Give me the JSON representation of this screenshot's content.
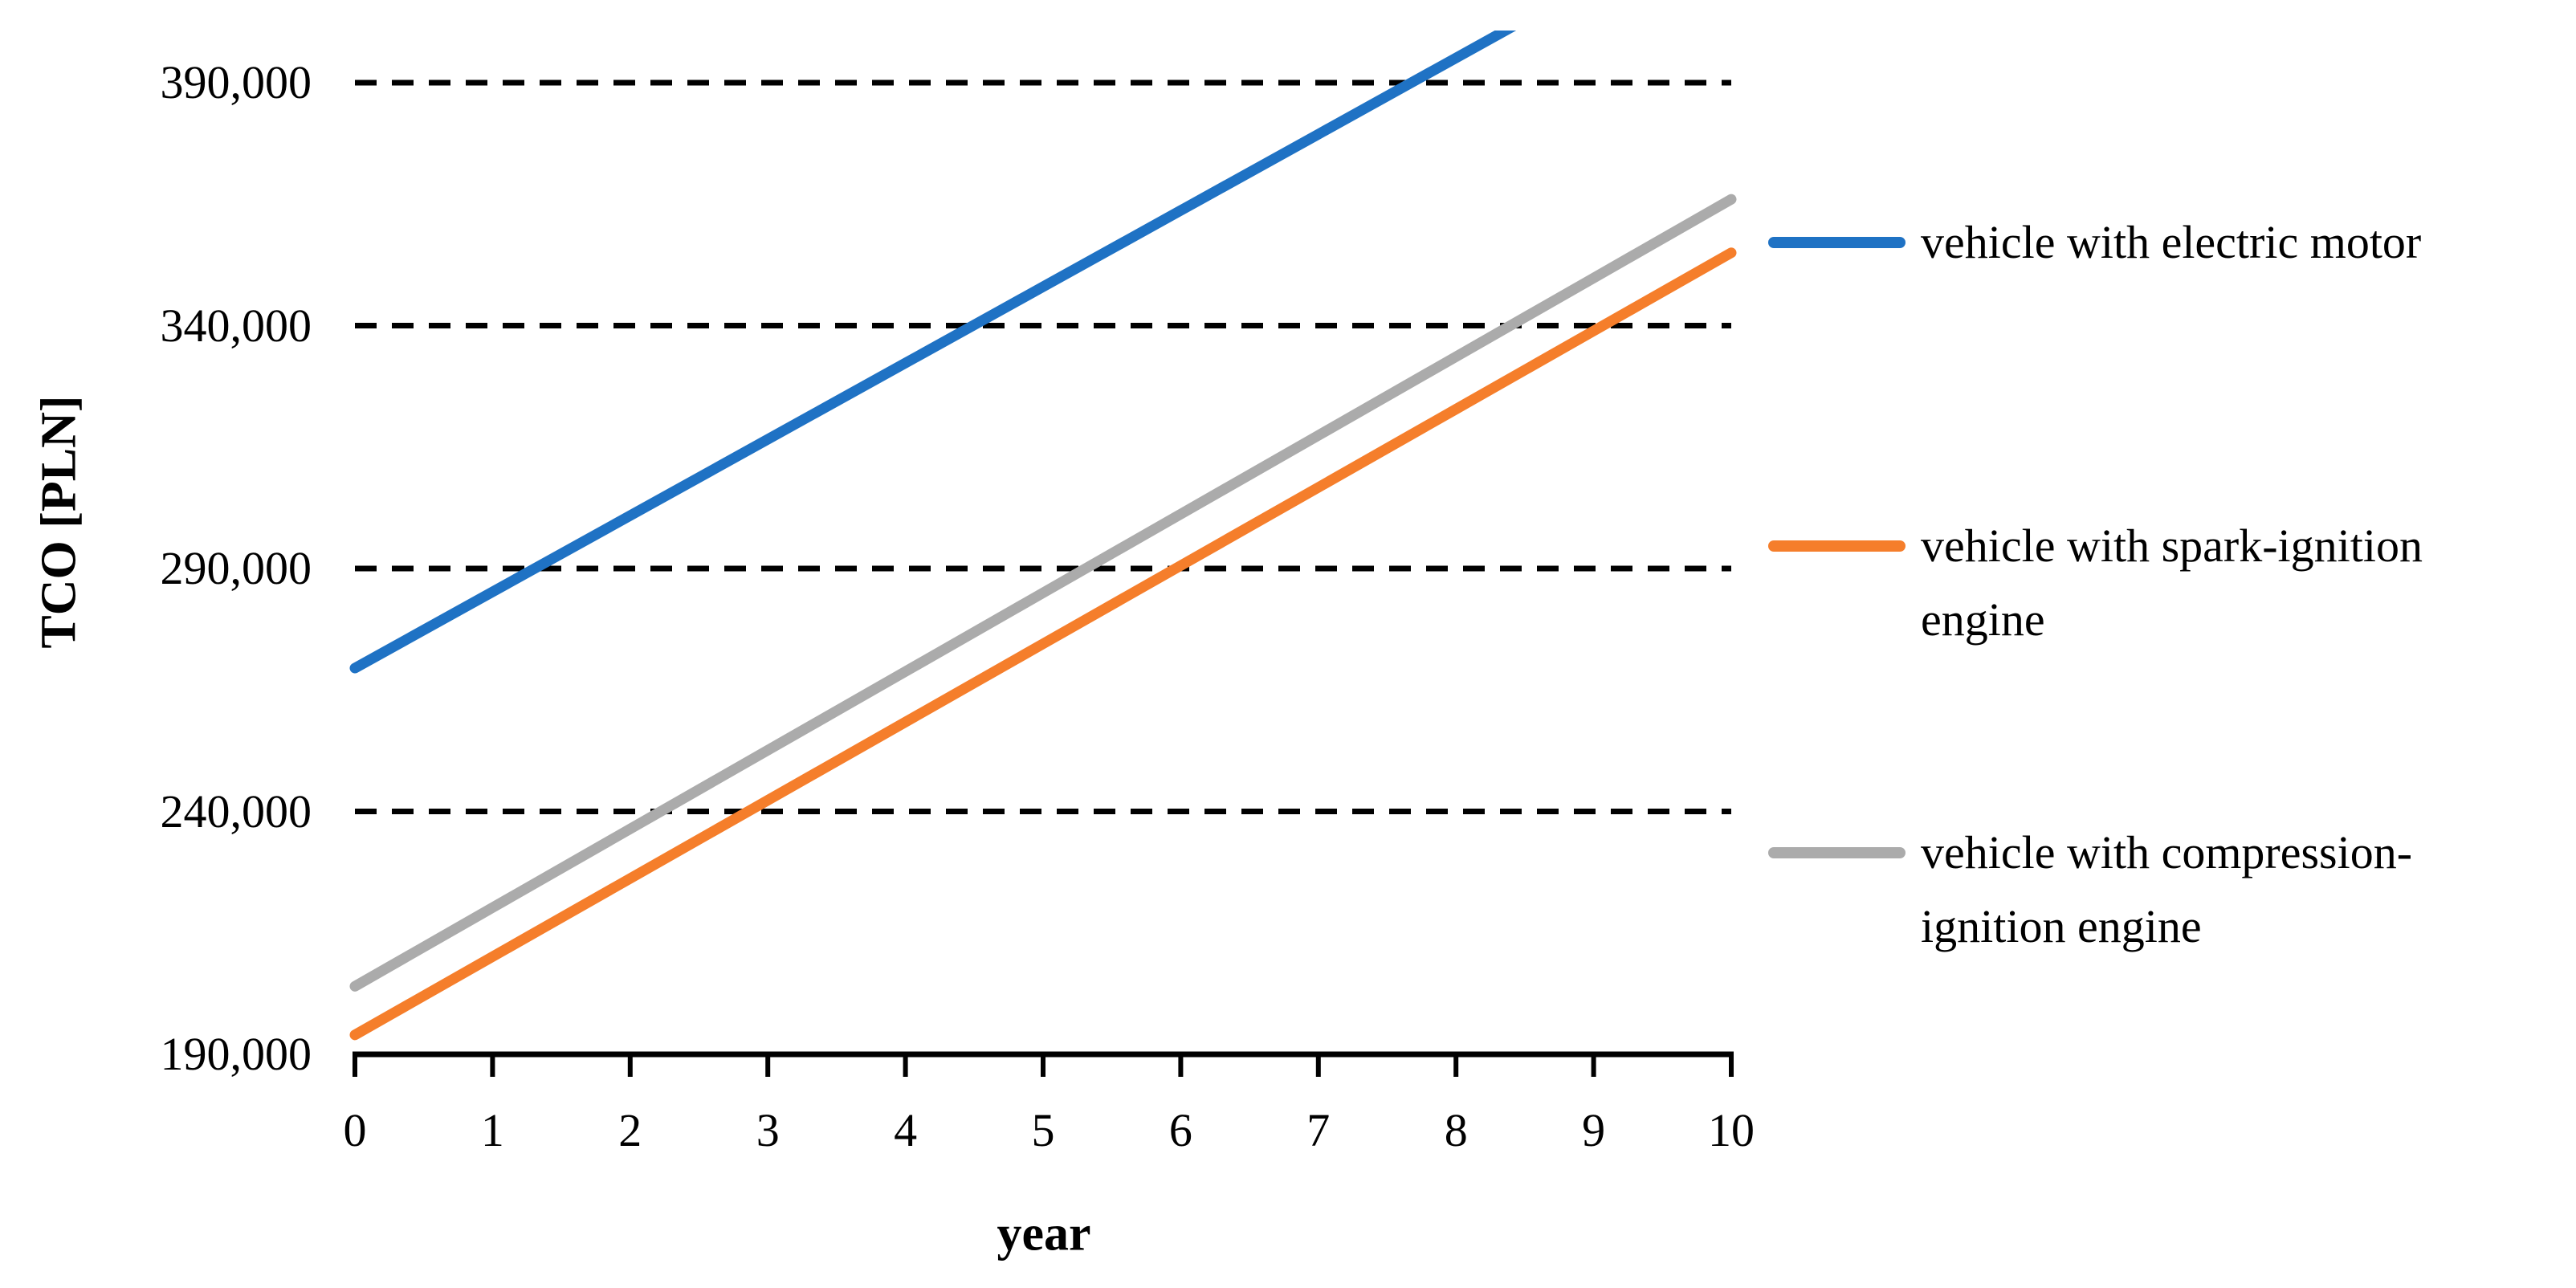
{
  "chart_data": {
    "type": "line",
    "title": "",
    "xlabel": "year",
    "ylabel": "TCO [PLN]",
    "x": [
      0,
      1,
      2,
      3,
      4,
      5,
      6,
      7,
      8,
      9,
      10
    ],
    "xlim": [
      0,
      10
    ],
    "ylim": [
      190000,
      404000
    ],
    "y_major_unit": 50000,
    "grid": "horizontal-dashed-only",
    "gridline_values": [
      240000,
      290000,
      340000,
      390000
    ],
    "y_tick_values": [
      190000,
      240000,
      290000,
      340000,
      390000
    ],
    "y_tick_labels": [
      "190,000",
      "240,000",
      "290,000",
      "340,000",
      "390,000"
    ],
    "x_tick_values": [
      0,
      1,
      2,
      3,
      4,
      5,
      6,
      7,
      8,
      9,
      10
    ],
    "x_tick_labels": [
      "0",
      "1",
      "2",
      "3",
      "4",
      "5",
      "6",
      "7",
      "8",
      "9",
      "10"
    ],
    "legend_position": "right",
    "axis_color": "#000000",
    "series": [
      {
        "key": "electric-motor",
        "name": "vehicle with electric motor",
        "legend_lines": [
          "vehicle with electric motor"
        ],
        "color": "#1F72C4",
        "values": [
          269500,
          285200,
          300900,
          316600,
          332300,
          348000,
          363700,
          379400,
          395100,
          410800,
          426500
        ],
        "note": "clipped at top of plot area above ~400,000"
      },
      {
        "key": "spark-ignition",
        "name": "vehicle with spark-ignition engine",
        "legend_lines": [
          "vehicle with spark-ignition",
          "engine"
        ],
        "color": "#F57E2B",
        "values": [
          194000,
          210100,
          226200,
          242300,
          258400,
          274500,
          290600,
          306700,
          322800,
          338900,
          355000
        ]
      },
      {
        "key": "compression-ignition",
        "name": "vehicle with compression-ignition engine",
        "legend_lines": [
          "vehicle with compression-",
          "ignition engine"
        ],
        "color": "#ABABAB",
        "values": [
          204000,
          220200,
          236400,
          252600,
          268800,
          285000,
          301200,
          317400,
          333600,
          349800,
          366000
        ]
      }
    ]
  }
}
